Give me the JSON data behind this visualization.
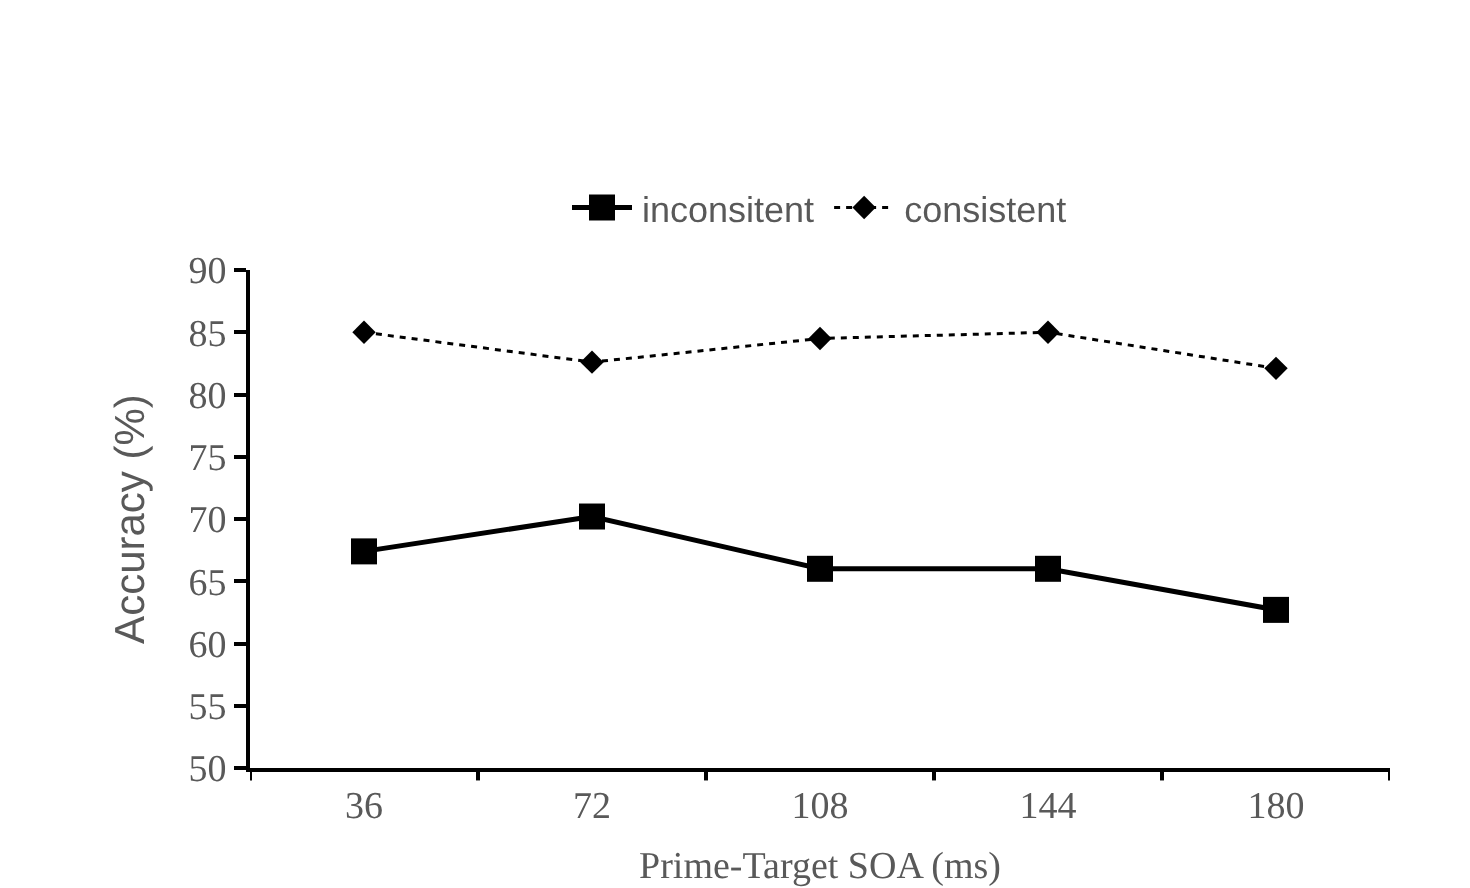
{
  "chart_data": {
    "type": "line",
    "xlabel": "Prime-Target SOA (ms)",
    "ylabel": "Accuracy (%)",
    "categories": [
      "36",
      "72",
      "108",
      "144",
      "180"
    ],
    "series": [
      {
        "name": "inconsitent",
        "color": "#000000",
        "marker": "square",
        "line_style": "solid",
        "values": [
          67.4,
          70.2,
          66.0,
          66.0,
          62.7
        ]
      },
      {
        "name": "consistent",
        "color": "#000000",
        "marker": "diamond",
        "line_style": "dotted",
        "values": [
          85.0,
          82.6,
          84.5,
          85.0,
          82.1
        ]
      }
    ],
    "ylim": [
      50,
      90
    ],
    "yticks": [
      50,
      55,
      60,
      65,
      70,
      75,
      80,
      85,
      90
    ],
    "grid": false,
    "legend": "top"
  }
}
